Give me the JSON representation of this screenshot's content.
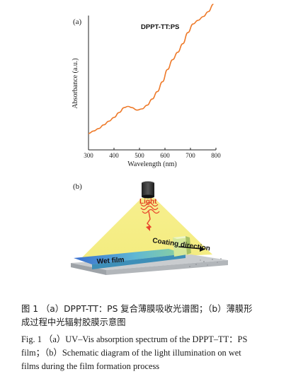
{
  "panel_a_label": "(a)",
  "panel_b_label": "(b)",
  "chart_data": {
    "type": "line",
    "series_label": "DPPT-TT:PS",
    "xlabel": "Wavelength (nm)",
    "ylabel": "Absorbance (a.u.)",
    "xlim": [
      300,
      800
    ],
    "xticks": [
      300,
      400,
      500,
      600,
      700,
      800
    ],
    "line_color": "#ee7a2a",
    "x": [
      300,
      320,
      340,
      360,
      380,
      400,
      420,
      440,
      455,
      470,
      490,
      510,
      530,
      550,
      570,
      590,
      610,
      630,
      650,
      670,
      690,
      710,
      730,
      750,
      770,
      790
    ],
    "y": [
      0.03,
      0.05,
      0.07,
      0.1,
      0.13,
      0.16,
      0.2,
      0.24,
      0.25,
      0.24,
      0.22,
      0.23,
      0.26,
      0.31,
      0.37,
      0.45,
      0.55,
      0.63,
      0.69,
      0.76,
      0.85,
      0.92,
      0.95,
      0.98,
      1.02,
      1.08
    ]
  },
  "schematic": {
    "light_label": "Light",
    "coating_label": "Coating direction",
    "film_label": "Wet film"
  },
  "caption": {
    "cn_line1": "图 1 （a）DPPT-TT：PS 复合薄膜吸收光谱图；（b）薄膜形",
    "cn_line2": "成过程中光辐射胶膜示意图",
    "en_line1": "Fig. 1 （a）UV–Vis absorption spectrum of the DPPT–TT：PS",
    "en_line2": "film；（b）Schematic diagram of the light illumination on wet",
    "en_line3": "films during the film formation process"
  }
}
